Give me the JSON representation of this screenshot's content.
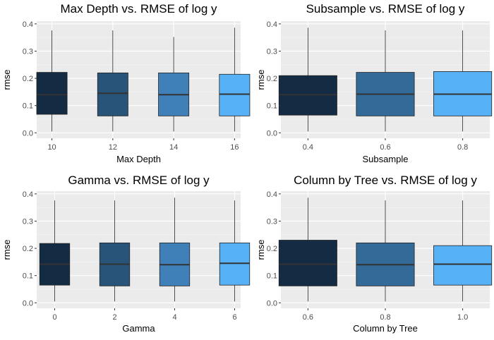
{
  "colors": {
    "panel_bg": "#ebebeb",
    "grid_major": "#ffffff",
    "grid_minor": "#f5f5f5",
    "tick_text": "#4d4d4d",
    "box_outline": "#222222",
    "median": "#333333",
    "fill_4": [
      "#132b43",
      "#28547a",
      "#3f80b9",
      "#56b1f7"
    ],
    "fill_3": [
      "#132b43",
      "#336a98",
      "#56b1f7"
    ]
  },
  "chart_data": [
    {
      "type": "box",
      "title": "Max Depth vs. RMSE of log y",
      "xlabel": "Max Depth",
      "ylabel": "rmse",
      "x_ticks": [
        "10",
        "12",
        "14",
        "16"
      ],
      "x_range": [
        9.5,
        16.2
      ],
      "ylim": [
        -0.02,
        0.41
      ],
      "y_ticks": [
        0.0,
        0.1,
        0.2,
        0.3,
        0.4
      ],
      "y_tick_labels": [
        "0.0",
        "0.1",
        "0.2",
        "0.3",
        "0.4"
      ],
      "grid": true,
      "boxes": [
        {
          "x": 10,
          "width": 1.0,
          "min": 0.005,
          "q1": 0.068,
          "median": 0.14,
          "q3": 0.222,
          "max": 0.376,
          "fill_index": 0
        },
        {
          "x": 12,
          "width": 1.0,
          "min": 0.005,
          "q1": 0.062,
          "median": 0.145,
          "q3": 0.22,
          "max": 0.376,
          "fill_index": 1
        },
        {
          "x": 14,
          "width": 1.0,
          "min": 0.005,
          "q1": 0.062,
          "median": 0.14,
          "q3": 0.22,
          "max": 0.352,
          "fill_index": 2
        },
        {
          "x": 16,
          "width": 1.0,
          "min": 0.005,
          "q1": 0.062,
          "median": 0.142,
          "q3": 0.215,
          "max": 0.386,
          "fill_index": 3
        }
      ]
    },
    {
      "type": "box",
      "title": "Subsample vs. RMSE of log y",
      "xlabel": "Subsample",
      "ylabel": "rmse",
      "x_ticks": [
        "0.4",
        "0.6",
        "0.8"
      ],
      "x_range": [
        0.33,
        0.87
      ],
      "ylim": [
        -0.02,
        0.41
      ],
      "y_ticks": [
        0.0,
        0.1,
        0.2,
        0.3,
        0.4
      ],
      "y_tick_labels": [
        "0.0",
        "0.1",
        "0.2",
        "0.3",
        "0.4"
      ],
      "grid": true,
      "boxes": [
        {
          "x": 0.4,
          "width": 0.15,
          "min": 0.005,
          "q1": 0.065,
          "median": 0.14,
          "q3": 0.21,
          "max": 0.386,
          "fill_index": 0
        },
        {
          "x": 0.6,
          "width": 0.15,
          "min": 0.005,
          "q1": 0.062,
          "median": 0.142,
          "q3": 0.222,
          "max": 0.376,
          "fill_index": 1
        },
        {
          "x": 0.8,
          "width": 0.15,
          "min": 0.005,
          "q1": 0.062,
          "median": 0.142,
          "q3": 0.225,
          "max": 0.376,
          "fill_index": 2
        }
      ]
    },
    {
      "type": "box",
      "title": "Gamma vs. RMSE of log y",
      "xlabel": "Gamma",
      "ylabel": "rmse",
      "x_ticks": [
        "0",
        "2",
        "4",
        "6"
      ],
      "x_range": [
        -0.6,
        6.2
      ],
      "ylim": [
        -0.02,
        0.41
      ],
      "y_ticks": [
        0.0,
        0.1,
        0.2,
        0.3,
        0.4
      ],
      "y_tick_labels": [
        "0.0",
        "0.1",
        "0.2",
        "0.3",
        "0.4"
      ],
      "grid": true,
      "boxes": [
        {
          "x": 0,
          "width": 1.0,
          "min": 0.005,
          "q1": 0.065,
          "median": 0.142,
          "q3": 0.218,
          "max": 0.376,
          "fill_index": 0
        },
        {
          "x": 2,
          "width": 1.0,
          "min": 0.005,
          "q1": 0.062,
          "median": 0.142,
          "q3": 0.22,
          "max": 0.376,
          "fill_index": 1
        },
        {
          "x": 4,
          "width": 1.0,
          "min": 0.005,
          "q1": 0.062,
          "median": 0.14,
          "q3": 0.22,
          "max": 0.386,
          "fill_index": 2
        },
        {
          "x": 6,
          "width": 1.0,
          "min": 0.005,
          "q1": 0.065,
          "median": 0.145,
          "q3": 0.22,
          "max": 0.376,
          "fill_index": 3
        }
      ]
    },
    {
      "type": "box",
      "title": "Column by Tree vs. RMSE of log y",
      "xlabel": "Column by Tree",
      "ylabel": "rmse",
      "x_ticks": [
        "0.6",
        "0.8",
        "1.0"
      ],
      "x_range": [
        0.53,
        1.07
      ],
      "ylim": [
        -0.02,
        0.41
      ],
      "y_ticks": [
        0.0,
        0.1,
        0.2,
        0.3,
        0.4
      ],
      "y_tick_labels": [
        "0.0",
        "0.1",
        "0.2",
        "0.3",
        "0.4"
      ],
      "grid": true,
      "boxes": [
        {
          "x": 0.6,
          "width": 0.15,
          "min": 0.005,
          "q1": 0.062,
          "median": 0.142,
          "q3": 0.23,
          "max": 0.386,
          "fill_index": 0
        },
        {
          "x": 0.8,
          "width": 0.15,
          "min": 0.005,
          "q1": 0.062,
          "median": 0.14,
          "q3": 0.22,
          "max": 0.376,
          "fill_index": 1
        },
        {
          "x": 1.0,
          "width": 0.15,
          "min": 0.005,
          "q1": 0.065,
          "median": 0.142,
          "q3": 0.21,
          "max": 0.376,
          "fill_index": 2
        }
      ]
    }
  ]
}
